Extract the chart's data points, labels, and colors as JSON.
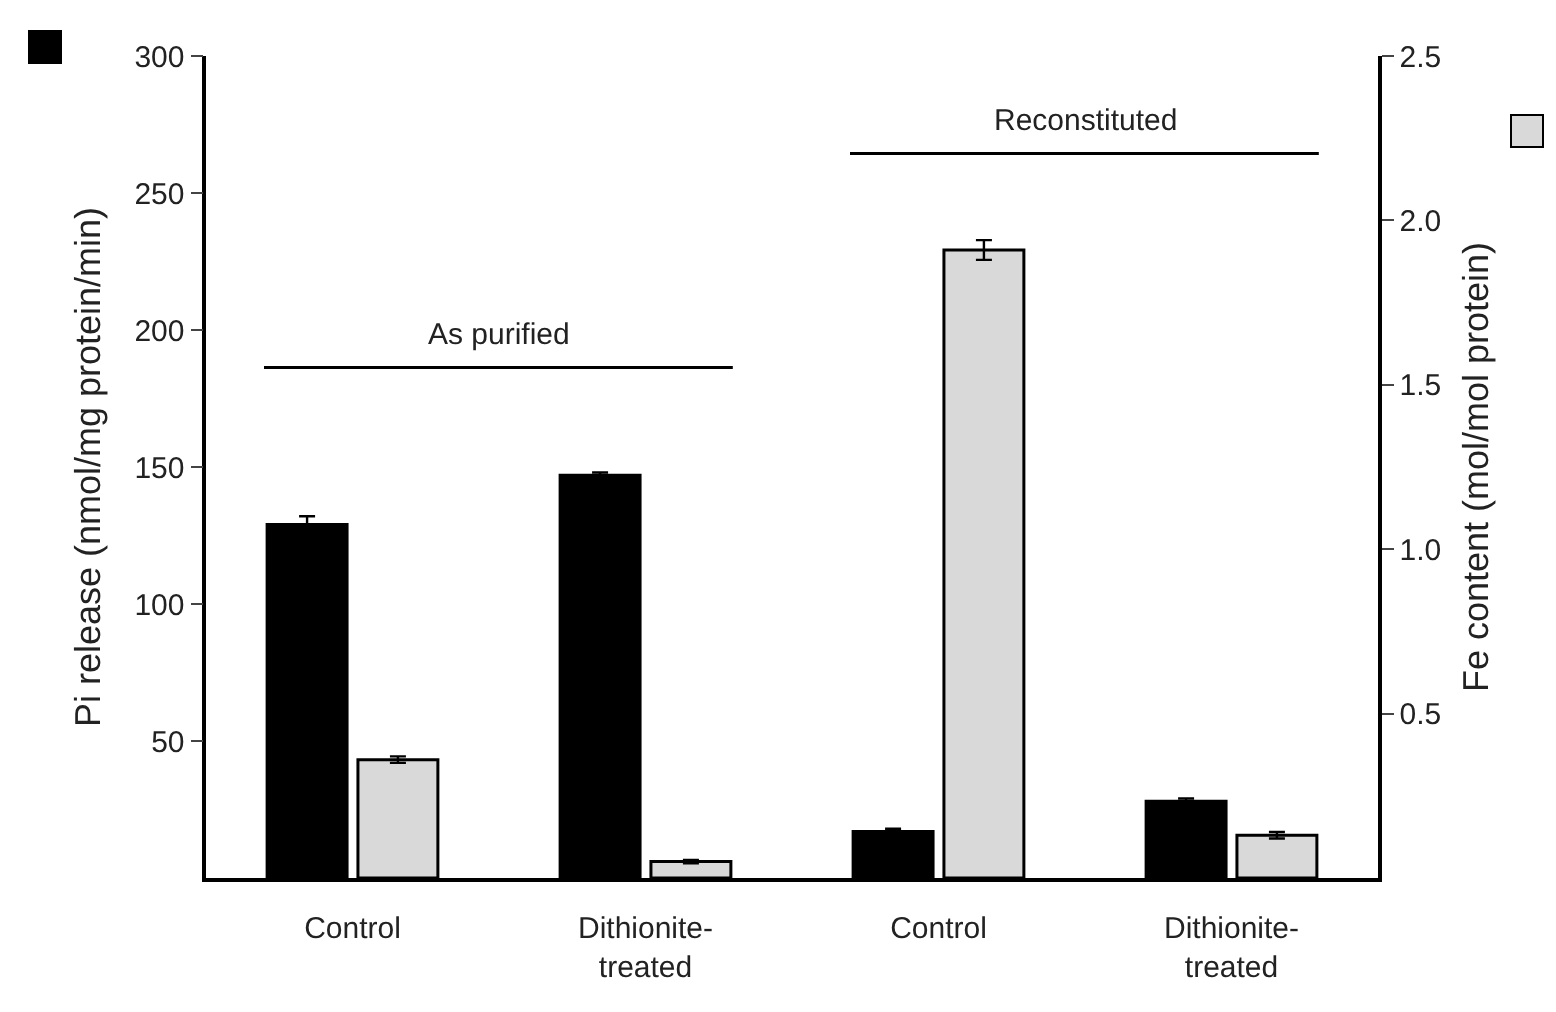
{
  "chart_data": {
    "type": "bar",
    "categories": [
      "Control",
      "Dithionite-treated",
      "Control",
      "Dithionite-treated"
    ],
    "ylabel": "Pi release (nmol/mg protein/min)",
    "y2label": "Fe content (mol/mol protein)",
    "annotations": [
      "As purified",
      "Reconstituted"
    ],
    "series": [
      {
        "color": "#000000",
        "values": [
          129,
          147,
          17,
          28
        ],
        "errors": [
          3,
          1,
          1,
          1
        ]
      },
      {
        "color": "#d9d9d9",
        "axis": "y2",
        "values": [
          0.36,
          0.05,
          1.91,
          0.13
        ],
        "errors": [
          0.01,
          0.005,
          0.03,
          0.01
        ]
      }
    ],
    "ylim": [
      0,
      300
    ],
    "yticks": [
      50,
      100,
      150,
      200,
      250,
      300
    ],
    "y2lim": [
      0,
      2.5
    ],
    "y2ticks": [
      0.5,
      {
        "value": 1,
        "label": "1.0"
      },
      1.5,
      {
        "value": 2,
        "label": "2.0"
      },
      2.5
    ],
    "grid": false
  }
}
